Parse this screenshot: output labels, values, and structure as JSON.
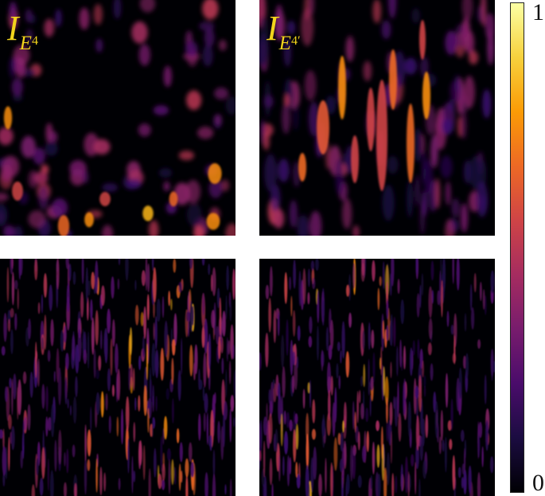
{
  "panels": [
    {
      "id": "top-left",
      "label": {
        "main": "I",
        "sub": "E",
        "subsub": "4",
        "prime": ""
      }
    },
    {
      "id": "top-right",
      "label": {
        "main": "I",
        "sub": "E",
        "subsub": "4",
        "prime": "′"
      }
    },
    {
      "id": "bottom-left",
      "label": null
    },
    {
      "id": "bottom-right",
      "label": null
    }
  ],
  "colorbar": {
    "colormap": "inferno",
    "max_label": "1",
    "min_label": "0",
    "stops": [
      "#000004",
      "#1b0c41",
      "#4a0c6b",
      "#781c6d",
      "#a52c60",
      "#cf4446",
      "#ed6925",
      "#fb9b06",
      "#f7d13d",
      "#fcffa4"
    ]
  }
}
